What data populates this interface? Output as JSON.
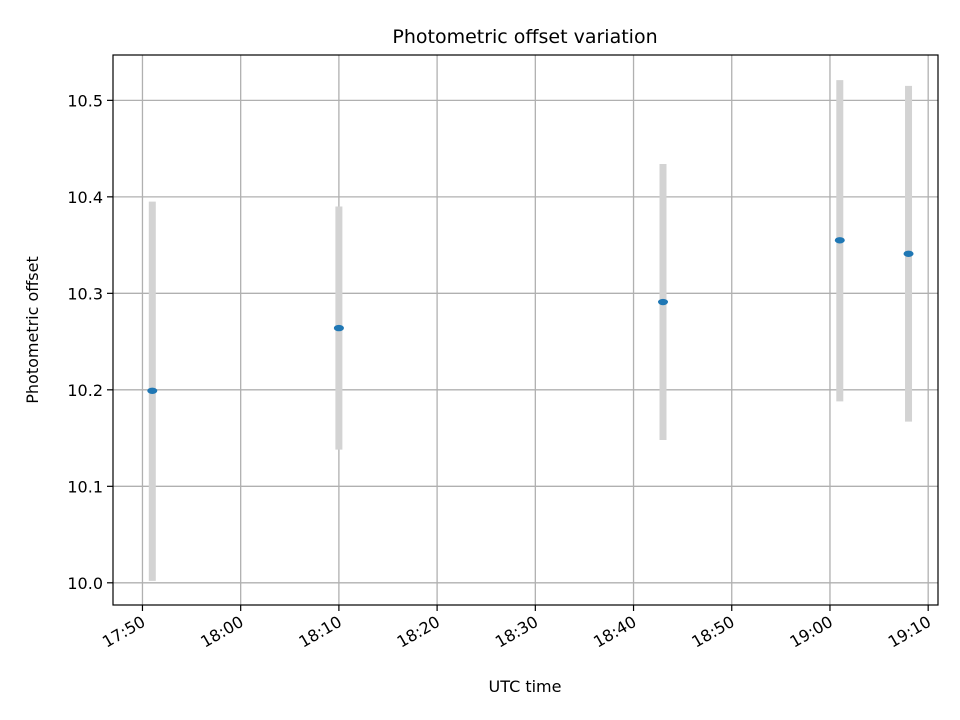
{
  "chart_data": {
    "type": "scatter",
    "title": "Photometric offset variation",
    "xlabel": "UTC time",
    "ylabel": "Photometric offset",
    "grid": true,
    "xlim": [
      "17:47",
      "19:11"
    ],
    "ylim": [
      9.977,
      10.547
    ],
    "x_ticks": [
      "17:50",
      "18:00",
      "18:10",
      "18:20",
      "18:30",
      "18:40",
      "18:50",
      "19:00",
      "19:10"
    ],
    "y_ticks": [
      "10.0",
      "10.1",
      "10.2",
      "10.3",
      "10.4",
      "10.5"
    ],
    "series": [
      {
        "x": [
          "17:51",
          "18:10",
          "18:43",
          "19:01",
          "19:08"
        ],
        "y": [
          10.199,
          10.264,
          10.291,
          10.355,
          10.341
        ],
        "error_low": [
          10.002,
          10.138,
          10.148,
          10.188,
          10.167
        ],
        "error_high": [
          10.395,
          10.39,
          10.434,
          10.521,
          10.515
        ]
      }
    ],
    "colors": {
      "point": "#1f77b4",
      "errorbar": "#d3d3d3",
      "grid": "#b0b0b0"
    }
  }
}
